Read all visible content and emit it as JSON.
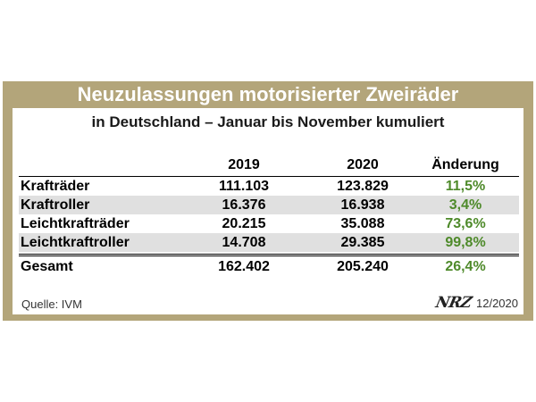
{
  "title": "Neuzulassungen motorisierter Zweiräder",
  "subtitle": "in Deutschland – Januar bis November kumuliert",
  "colors": {
    "frame": "#b3a57a",
    "change_positive": "#4e8a2a",
    "row_shade": "#e0e0e0"
  },
  "chart_data": {
    "type": "table",
    "columns": [
      "",
      "2019",
      "2020",
      "Änderung"
    ],
    "rows": [
      {
        "name": "Krafträder",
        "y2019": "111.103",
        "y2020": "123.829",
        "change": "11,5%"
      },
      {
        "name": "Kraftroller",
        "y2019": "16.376",
        "y2020": "16.938",
        "change": "3,4%"
      },
      {
        "name": "Leichtkrafträder",
        "y2019": "20.215",
        "y2020": "35.088",
        "change": "73,6%"
      },
      {
        "name": "Leichtkraftroller",
        "y2019": "14.708",
        "y2020": "29.385",
        "change": "99,8%"
      }
    ],
    "total": {
      "name": "Gesamt",
      "y2019": "162.402",
      "y2020": "205.240",
      "change": "26,4%"
    }
  },
  "footer": {
    "source": "Quelle: IVM",
    "logo": "NRZ",
    "date": "12/2020"
  }
}
